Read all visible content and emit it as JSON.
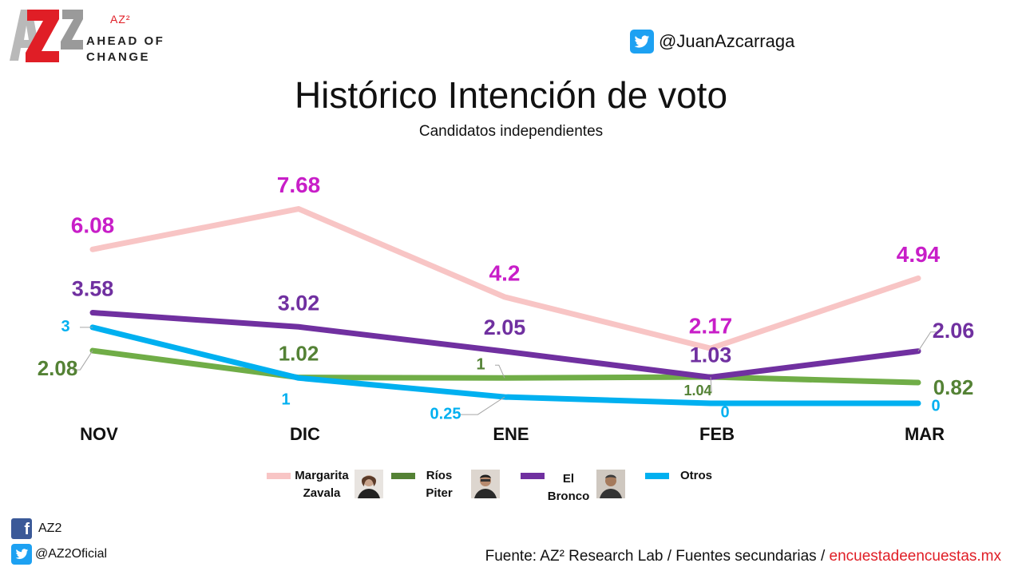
{
  "logo": {
    "brand": "AZ²",
    "tagline_line1": "AHEAD OF",
    "tagline_line2": "CHANGE"
  },
  "header": {
    "twitter_handle": "@JuanAzcarraga"
  },
  "footer": {
    "facebook_label": "AZ2",
    "twitter_label": "@AZ2Oficial",
    "source_prefix": "Fuente: AZ² Research Lab / Fuentes secundarias / ",
    "source_link": "encuestadeencuestas.mx"
  },
  "legend": [
    {
      "line1": "Margarita",
      "line2": "Zavala"
    },
    {
      "line1": "Ríos",
      "line2": "Piter"
    },
    {
      "line1": "El",
      "line2": "Bronco"
    },
    {
      "line1": "Otros",
      "line2": ""
    }
  ],
  "chart_data": {
    "type": "line",
    "title": "Histórico Intención de voto",
    "subtitle": "Candidatos independientes",
    "categories": [
      "NOV",
      "DIC",
      "ENE",
      "FEB",
      "MAR"
    ],
    "ylim": [
      0,
      9
    ],
    "grid": false,
    "legend_position": "bottom",
    "series": [
      {
        "name": "Margarita Zavala",
        "color": "#f8c5c5",
        "label_color": "#c81ec8",
        "values": [
          6.08,
          7.68,
          4.2,
          2.17,
          4.94
        ],
        "labels": [
          "6.08",
          "7.68",
          "4.2",
          "2.17",
          "4.94"
        ]
      },
      {
        "name": "Ríos Piter",
        "color": "#70ad47",
        "label_color": "#548235",
        "values": [
          2.08,
          1.02,
          1,
          1.04,
          0.82
        ],
        "labels": [
          "2.08",
          "1.02",
          "1",
          "1.04",
          "0.82"
        ]
      },
      {
        "name": "El Bronco",
        "color": "#7030a0",
        "label_color": "#7030a0",
        "values": [
          3.58,
          3.02,
          2.05,
          1.03,
          2.06
        ],
        "labels": [
          "3.58",
          "3.02",
          "2.05",
          "1.03",
          "2.06"
        ]
      },
      {
        "name": "Otros",
        "color": "#00b0f0",
        "label_color": "#00b0f0",
        "values": [
          3,
          1,
          0.25,
          0,
          0
        ],
        "labels": [
          "3",
          "1",
          "0.25",
          "0",
          "0"
        ]
      }
    ]
  }
}
